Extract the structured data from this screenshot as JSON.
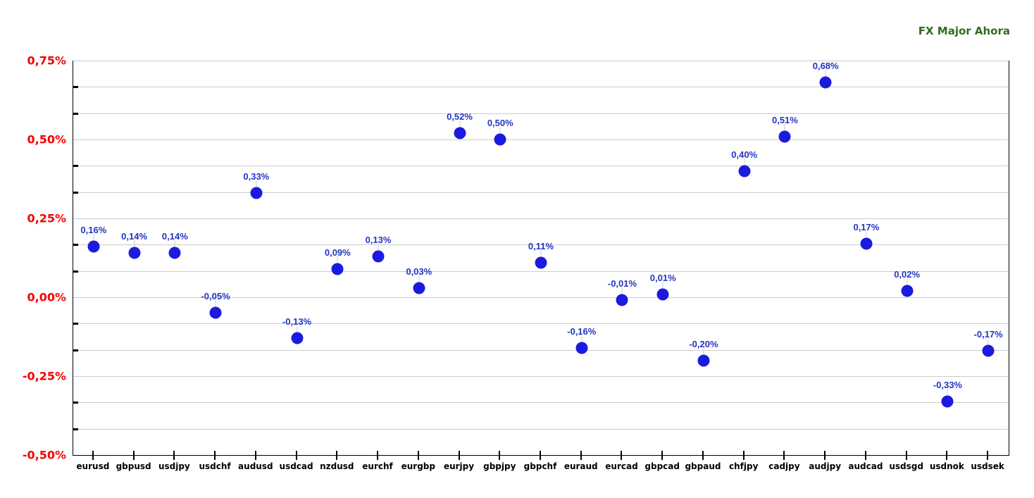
{
  "title": "FX Major Ahora",
  "colors": {
    "title": "#2f6d1d",
    "marker": "#1b1be0",
    "value_label": "#2335c2",
    "y_axis_label": "#f20000",
    "x_axis_label": "#000000",
    "gridline": "#cccccc",
    "zero_line": "#000000",
    "axis_frame": "#000000",
    "background": "#ffffff"
  },
  "chart_data": {
    "type": "scatter",
    "title": "FX Major Ahora",
    "xlabel": "",
    "ylabel": "",
    "categories": [
      "eurusd",
      "gbpusd",
      "usdjpy",
      "usdchf",
      "audusd",
      "usdcad",
      "nzdusd",
      "eurchf",
      "eurgbp",
      "eurjpy",
      "gbpjpy",
      "gbpchf",
      "euraud",
      "eurcad",
      "gbpcad",
      "gbpaud",
      "chfjpy",
      "cadjpy",
      "audjpy",
      "audcad",
      "usdsgd",
      "usdnok",
      "usdsek"
    ],
    "values": [
      0.16,
      0.14,
      0.14,
      -0.05,
      0.33,
      -0.13,
      0.09,
      0.13,
      0.03,
      0.52,
      0.5,
      0.11,
      -0.16,
      -0.01,
      0.01,
      -0.2,
      0.4,
      0.51,
      0.68,
      0.17,
      0.02,
      -0.33,
      -0.17
    ],
    "point_labels": [
      "0,16%",
      "0,14%",
      "0,14%",
      "-0,05%",
      "0,33%",
      "-0,13%",
      "0,09%",
      "0,13%",
      "0,03%",
      "0,52%",
      "0,50%",
      "0,11%",
      "-0,16%",
      "-0,01%",
      "0,01%",
      "-0,20%",
      "0,40%",
      "0,51%",
      "0,68%",
      "0,17%",
      "0,02%",
      "-0,33%",
      "-0,17%"
    ],
    "ylim": [
      -0.5,
      0.75
    ],
    "y_major_step": 0.25,
    "y_minor_step": 0.083333,
    "y_tick_labels": [
      "0,75%",
      "0,50%",
      "0,25%",
      "0,00%",
      "-0,25%",
      "-0,50%"
    ],
    "y_tick_values": [
      0.75,
      0.5,
      0.25,
      0.0,
      -0.25,
      -0.5
    ],
    "grid": true,
    "legend": "none",
    "zero_line": true
  }
}
